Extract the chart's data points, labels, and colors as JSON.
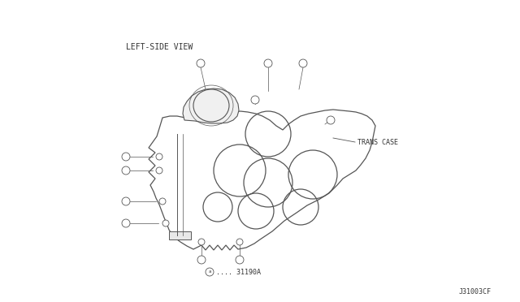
{
  "bg_color": "#ffffff",
  "line_color": "#555555",
  "text_color": "#333333",
  "title_text": "LEFT-SIDE VIEW",
  "label_trans_case": "TRANS CASE",
  "label_part_num": "ⓐ.... 31190A",
  "label_drawing_num": "J31003CF",
  "font_family": "monospace"
}
